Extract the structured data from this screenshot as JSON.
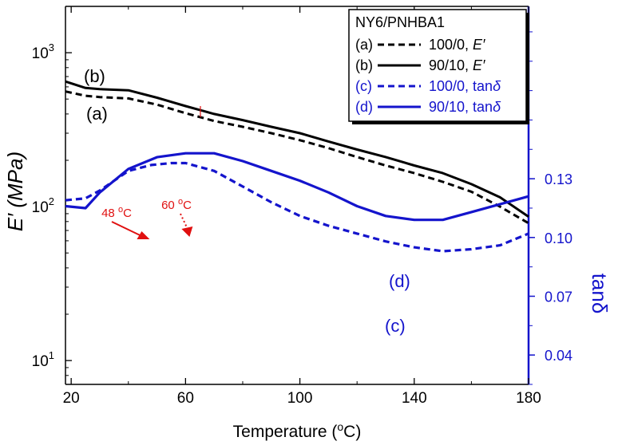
{
  "chart_data": {
    "type": "line",
    "title": "",
    "xlabel": "Temperature (",
    "xlabel_sup": "o",
    "xlabel_tail": "C)",
    "xlim": [
      18,
      180
    ],
    "x_ticks": [
      20,
      60,
      100,
      140,
      180
    ],
    "ylabel_left": "E′ (MPa)",
    "ylim_left_log": [
      7,
      2000
    ],
    "y_ticks_left": [
      {
        "value": 10,
        "base": "10",
        "exp": "1"
      },
      {
        "value": 100,
        "base": "10",
        "exp": "2"
      },
      {
        "value": 1000,
        "base": "10",
        "exp": "3"
      }
    ],
    "ylabel_right": "tanδ",
    "ylim_right": [
      0.025,
      0.218
    ],
    "y_ticks_right": [
      "0.04",
      "0.07",
      "0.10",
      "0.13"
    ],
    "y_ticks_right_values": [
      0.04,
      0.07,
      0.1,
      0.13
    ],
    "legend": {
      "title": "NY6/PNHBA1",
      "position": "top-right",
      "entries": [
        {
          "tag": "(a)",
          "text": "100/0, ",
          "italic": "E′",
          "color": "#000000",
          "dash": true
        },
        {
          "tag": "(b)",
          "text": "90/10, ",
          "italic": "E′",
          "color": "#000000",
          "dash": false
        },
        {
          "tag": "(c)",
          "text": "100/0, tan",
          "italic": "δ",
          "color": "#1414cc",
          "dash": true
        },
        {
          "tag": "(d)",
          "text": "90/10, tan",
          "italic": "δ",
          "color": "#1414cc",
          "dash": false
        }
      ]
    },
    "series": [
      {
        "name": "(a) 100/0, E′",
        "axis": "left",
        "color": "#000000",
        "dash": true,
        "x": [
          18,
          25,
          30,
          40,
          50,
          60,
          70,
          80,
          90,
          100,
          110,
          120,
          130,
          140,
          150,
          160,
          170,
          180
        ],
        "y": [
          560,
          525,
          515,
          505,
          460,
          405,
          360,
          330,
          300,
          270,
          240,
          210,
          185,
          165,
          145,
          125,
          100,
          78
        ]
      },
      {
        "name": "(b) 90/10, E′",
        "axis": "left",
        "color": "#000000",
        "dash": false,
        "x": [
          18,
          25,
          30,
          40,
          50,
          60,
          70,
          80,
          90,
          100,
          110,
          120,
          130,
          140,
          150,
          160,
          170,
          180
        ],
        "y": [
          650,
          590,
          580,
          570,
          510,
          450,
          400,
          365,
          330,
          300,
          265,
          235,
          210,
          185,
          165,
          140,
          115,
          86
        ]
      },
      {
        "name": "(c) 100/0, tanδ",
        "axis": "right",
        "color": "#1414cc",
        "dash": true,
        "x": [
          18,
          25,
          30,
          40,
          48,
          55,
          60,
          70,
          80,
          90,
          100,
          110,
          120,
          130,
          140,
          150,
          160,
          170,
          180
        ],
        "y": [
          0.119,
          0.12,
          0.124,
          0.134,
          0.137,
          0.138,
          0.138,
          0.134,
          0.126,
          0.118,
          0.111,
          0.106,
          0.102,
          0.098,
          0.095,
          0.093,
          0.094,
          0.096,
          0.102
        ]
      },
      {
        "name": "(d) 90/10, tanδ",
        "axis": "right",
        "color": "#1414cc",
        "dash": false,
        "x": [
          18,
          25,
          30,
          40,
          50,
          60,
          70,
          80,
          90,
          100,
          110,
          120,
          130,
          140,
          150,
          160,
          170,
          180
        ],
        "y": [
          0.116,
          0.115,
          0.123,
          0.135,
          0.141,
          0.143,
          0.143,
          0.139,
          0.134,
          0.129,
          0.123,
          0.116,
          0.111,
          0.109,
          0.109,
          0.113,
          0.117,
          0.121
        ]
      }
    ],
    "annotations": [
      {
        "text": "48 ",
        "sup": "o",
        "tail": "C",
        "color": "#e01010",
        "points_to_x": 48,
        "style": "solid-arrow"
      },
      {
        "text": "60 ",
        "sup": "o",
        "tail": "C",
        "color": "#e01010",
        "points_to_x": 60,
        "style": "dotted-arrow"
      }
    ],
    "curve_labels": [
      {
        "text": "(b)",
        "color": "#000000"
      },
      {
        "text": "(a)",
        "color": "#000000"
      },
      {
        "text": "(d)",
        "color": "#1414cc"
      },
      {
        "text": "(c)",
        "color": "#1414cc"
      }
    ],
    "colors": {
      "axis_right": "#1414cc",
      "axis_left": "#000000",
      "annotation": "#e01010"
    }
  }
}
